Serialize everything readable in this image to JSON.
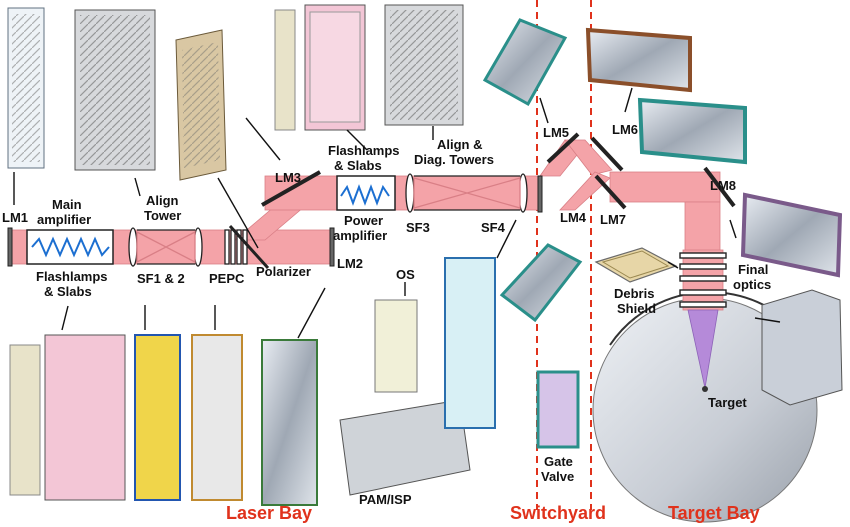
{
  "colors": {
    "beam": "#f4a3a8",
    "beam_edge": "#d97f86",
    "zone_text": "#e0321c",
    "divider": "#e0321c",
    "label": "#111111",
    "amplifier_wave": "#1c6fd1",
    "chamber": "#c9cfd8",
    "final_beam": "#b58ad9"
  },
  "labels": {
    "lm1": "LM1",
    "main_amp_1": "Main",
    "main_amp_2": "amplifier",
    "flash_1": "Flashlamps",
    "flash_2": "& Slabs",
    "align_1": "Align",
    "align_2": "Tower",
    "sf12": "SF1 & 2",
    "pepc": "PEPC",
    "polarizer": "Polarizer",
    "lm2": "LM2",
    "lm3": "LM3",
    "flash_top_1": "Flashlamps",
    "flash_top_2": "& Slabs",
    "power_1": "Power",
    "power_2": "amplifier",
    "sf3": "SF3",
    "sf4": "SF4",
    "diag_1": "Align &",
    "diag_2": "Diag. Towers",
    "os": "OS",
    "pam": "PAM/ISP",
    "lm4": "LM4",
    "lm5": "LM5",
    "lm6": "LM6",
    "lm7": "LM7",
    "lm8": "LM8",
    "gate_1": "Gate",
    "gate_2": "Valve",
    "debris_1": "Debris",
    "debris_2": "Shield",
    "final_1": "Final",
    "final_2": "optics",
    "target": "Target"
  },
  "zones": {
    "laser_bay": "Laser Bay",
    "switchyard": "Switchyard",
    "target_bay": "Target Bay"
  },
  "icons": [
    "amplifier-frame-icon",
    "align-tower-frame-icon",
    "spatial-filter-icon",
    "polarizer-icon",
    "mirror-module-icon",
    "target-chamber-icon"
  ]
}
